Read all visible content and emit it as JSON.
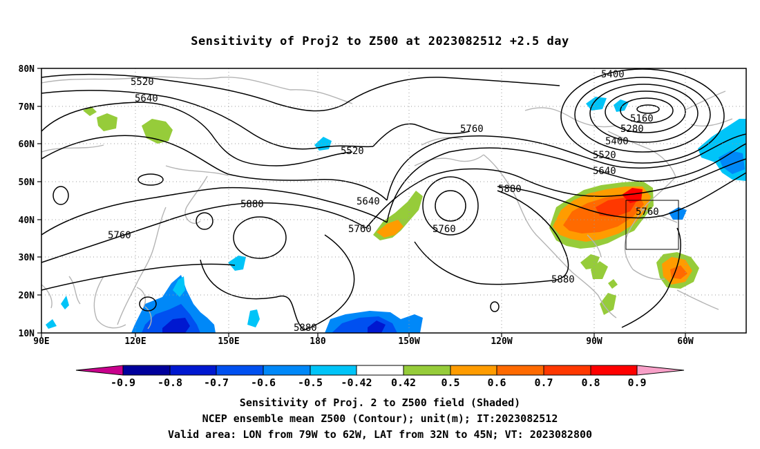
{
  "title": "Sensitivity of Proj2 to Z500 at 2023082512 +2.5 day",
  "map": {
    "lat_labels": [
      "80N",
      "70N",
      "60N",
      "50N",
      "40N",
      "30N",
      "20N",
      "10N"
    ],
    "lon_labels": [
      "90E",
      "120E",
      "150E",
      "180",
      "150W",
      "120W",
      "90W",
      "60W"
    ],
    "contour_labels": [
      "5520",
      "5640",
      "5400",
      "5160",
      "5280",
      "5400",
      "5520",
      "5640",
      "5760",
      "5520",
      "5880",
      "5760",
      "5640",
      "5760",
      "5760",
      "5880",
      "5760",
      "5880",
      "5880"
    ],
    "valid_area_box": {
      "lon_from": "79W",
      "lon_to": "62W",
      "lat_from": "32N",
      "lat_to": "45N"
    }
  },
  "colorbar": {
    "labels": [
      "-0.9",
      "-0.8",
      "-0.7",
      "-0.6",
      "-0.5",
      "-0.42",
      "0.42",
      "0.5",
      "0.6",
      "0.7",
      "0.8",
      "0.9"
    ],
    "colors": {
      "under": "#c8008c",
      "bins": [
        "#00009c",
        "#0018d0",
        "#0050f0",
        "#0088f8",
        "#00c4f8",
        "#ffffff",
        "#96cc3a",
        "#ff9c00",
        "#ff6a00",
        "#ff3800",
        "#ff0000"
      ],
      "over": "#f8a0c8"
    }
  },
  "footer": {
    "line1": "Sensitivity of Proj. 2 to Z500 field (Shaded)",
    "line2": "NCEP ensemble mean Z500 (Contour); unit(m); IT:2023082512",
    "line3": "Valid area: LON from 79W to 62W, LAT from 32N to 45N; VT: 2023082800"
  }
}
